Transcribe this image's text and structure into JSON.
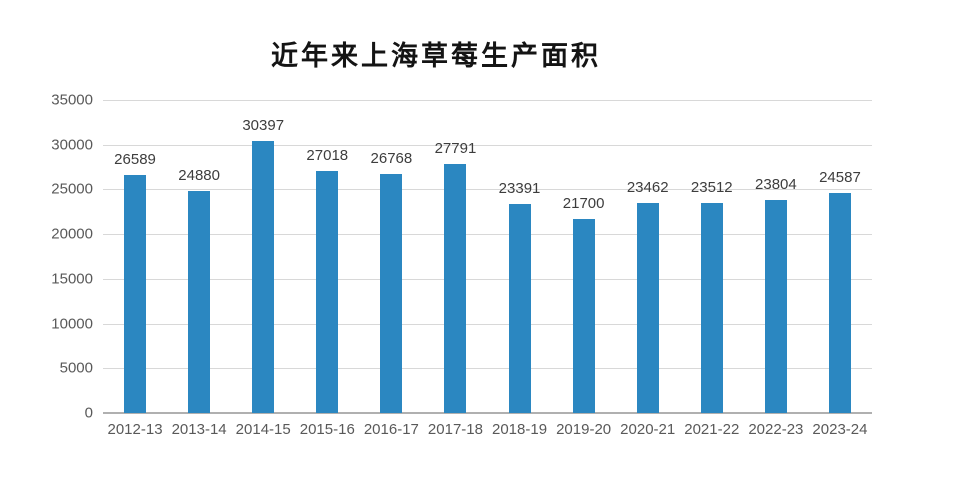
{
  "chart_data": {
    "type": "bar",
    "title": "近年来上海草莓生产面积",
    "categories": [
      "2012-13",
      "2013-14",
      "2014-15",
      "2015-16",
      "2016-17",
      "2017-18",
      "2018-19",
      "2019-20",
      "2020-21",
      "2021-22",
      "2022-23",
      "2023-24"
    ],
    "values": [
      26589,
      24880,
      30397,
      27018,
      26768,
      27791,
      23391,
      21700,
      23462,
      23512,
      23804,
      24587
    ],
    "xlabel": "",
    "ylabel": "",
    "ylim": [
      0,
      35000
    ],
    "yticks": [
      0,
      5000,
      10000,
      15000,
      20000,
      25000,
      30000,
      35000
    ],
    "grid": true,
    "legend": "none",
    "data_labels": "outside-end",
    "bar_color": "#2b87c1",
    "gridline_color": "#d8d8d8",
    "axis_line_color": "#b0b0b0",
    "axis_text_color": "#595959",
    "data_label_color": "#3d3d3d",
    "title_color": "#141414",
    "background_color": "#ffffff"
  }
}
